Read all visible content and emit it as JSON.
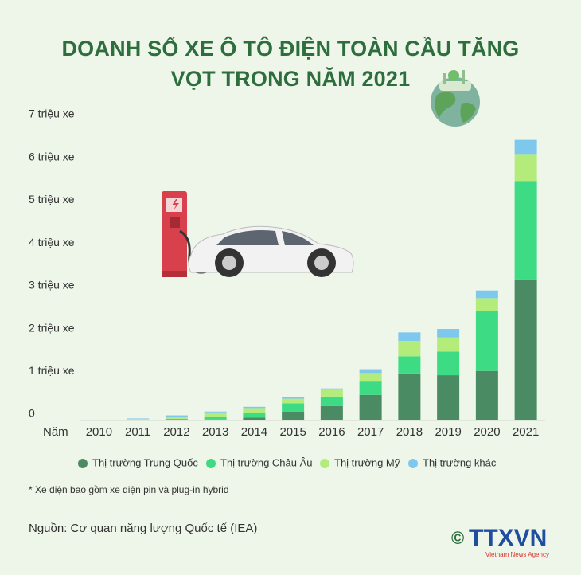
{
  "chart_data": {
    "type": "stacked-bar",
    "title": "DOANH SỐ XE Ô TÔ ĐIỆN TOÀN CẦU TĂNG VỌT TRONG NĂM 2021",
    "xlabel": "Năm",
    "categories": [
      "2010",
      "2011",
      "2012",
      "2013",
      "2014",
      "2015",
      "2016",
      "2017",
      "2018",
      "2019",
      "2020",
      "2021"
    ],
    "series": [
      {
        "name": "Thị trường Trung Quốc",
        "color": "#4b8b63",
        "values": [
          0.002,
          0.01,
          0.01,
          0.02,
          0.07,
          0.21,
          0.34,
          0.6,
          1.1,
          1.06,
          1.16,
          3.3
        ]
      },
      {
        "name": "Thị trường Châu Âu",
        "color": "#3ddc84",
        "values": [
          0.002,
          0.01,
          0.03,
          0.07,
          0.1,
          0.19,
          0.22,
          0.31,
          0.4,
          0.55,
          1.4,
          2.3
        ]
      },
      {
        "name": "Thị trường Mỹ",
        "color": "#b4ec7c",
        "values": [
          0.002,
          0.02,
          0.05,
          0.1,
          0.12,
          0.11,
          0.16,
          0.2,
          0.36,
          0.33,
          0.3,
          0.63
        ]
      },
      {
        "name": "Thị trường khác",
        "color": "#7ec8ee",
        "values": [
          0.001,
          0.01,
          0.03,
          0.02,
          0.03,
          0.04,
          0.03,
          0.09,
          0.2,
          0.2,
          0.18,
          0.33
        ]
      }
    ],
    "ylim": [
      0,
      7
    ],
    "yticks": [
      0,
      {
        "value": 1,
        "label": "1 triệu xe"
      },
      {
        "value": 2,
        "label": "2 triệu xe"
      },
      {
        "value": 3,
        "label": "3 triệu xe"
      },
      {
        "value": 4,
        "label": "4 triệu xe"
      },
      {
        "value": 5,
        "label": "5 triệu xe"
      },
      {
        "value": 6,
        "label": "6 triệu xe"
      },
      {
        "value": 7,
        "label": "7 triệu xe"
      }
    ],
    "grid": false,
    "legend": "bottom",
    "footnote": "* Xe điện bao gồm xe điện pin và plug-in hybrid",
    "source": "Nguồn: Cơ quan năng lượng Quốc tế (IEA)",
    "logo": {
      "copyright": "©",
      "name": "TTXVN",
      "subtitle": "Vietnam News Agency"
    }
  }
}
